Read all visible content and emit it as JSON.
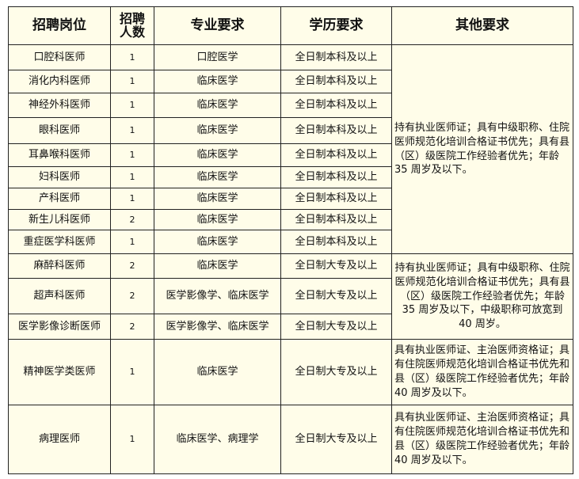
{
  "headers": [
    "招聘岗位",
    "招聘人数",
    "专业要求",
    "学历要求",
    "其他要求"
  ],
  "header_count_lines": [
    "招聘",
    "人数"
  ],
  "rows": [
    {
      "position": "口腔科医师",
      "count": "1",
      "major": "口腔医学",
      "education": "全日制本科及以上"
    },
    {
      "position": "消化内科医师",
      "count": "1",
      "major": "临床医学",
      "education": "全日制本科及以上"
    },
    {
      "position": "神经外科医师",
      "count": "1",
      "major": "临床医学",
      "education": "全日制本科及以上"
    },
    {
      "position": "眼科医师",
      "count": "1",
      "major": "临床医学",
      "education": "全日制本科及以上"
    },
    {
      "position": "耳鼻喉科医师",
      "count": "1",
      "major": "临床医学",
      "education": "全日制本科及以上"
    },
    {
      "position": "妇科医师",
      "count": "1",
      "major": "临床医学",
      "education": "全日制本科及以上"
    },
    {
      "position": "产科医师",
      "count": "1",
      "major": "临床医学",
      "education": "全日制本科及以上"
    },
    {
      "position": "新生儿科医师",
      "count": "2",
      "major": "临床医学",
      "education": "全日制本科及以上"
    },
    {
      "position": "重症医学科医师",
      "count": "1",
      "major": "临床医学",
      "education": "全日制本科及以上"
    },
    {
      "position": "麻醉科医师",
      "count": "2",
      "major": "临床医学",
      "education": "全日制大专及以上"
    },
    {
      "position": "超声科医师",
      "count": "2",
      "major": "医学影像学、临床医学",
      "education": "全日制大专及以上"
    },
    {
      "position": "医学影像诊断医师",
      "count": "2",
      "major": "医学影像学、临床医学",
      "education": "全日制大专及以上"
    },
    {
      "position": "精神医学类医师",
      "count": "1",
      "major": "临床医学",
      "education": "全日制大专及以上"
    },
    {
      "position": "病理医师",
      "count": "1",
      "major": "临床医学、病理学",
      "education": "全日制大专及以上"
    }
  ],
  "other_requirements": [
    "持有执业医师证；具有中级职称、住院医师规范化培训合格证书优先；具有县（区）级医院工作经验者优先；年龄 35 周岁及以下。",
    "持有执业医师证；具有中级职称、住院医师规范化培训合格证书优先；具有县（区）级医院工作经验者优先；年龄 35 周岁及以下，中级职称可放宽到 40 周岁。",
    "具有执业医师证、主治医师资格证；具有住院医师规范化培训合格证书优先和县（区）级医院工作经验者优先；年龄 40 周岁及以下。",
    "具有执业医师证、主治医师资格证；具有住院医师规范化培训合格证书优先和县（区）级医院工作经验者优先；年龄 40 周岁及以下。"
  ]
}
